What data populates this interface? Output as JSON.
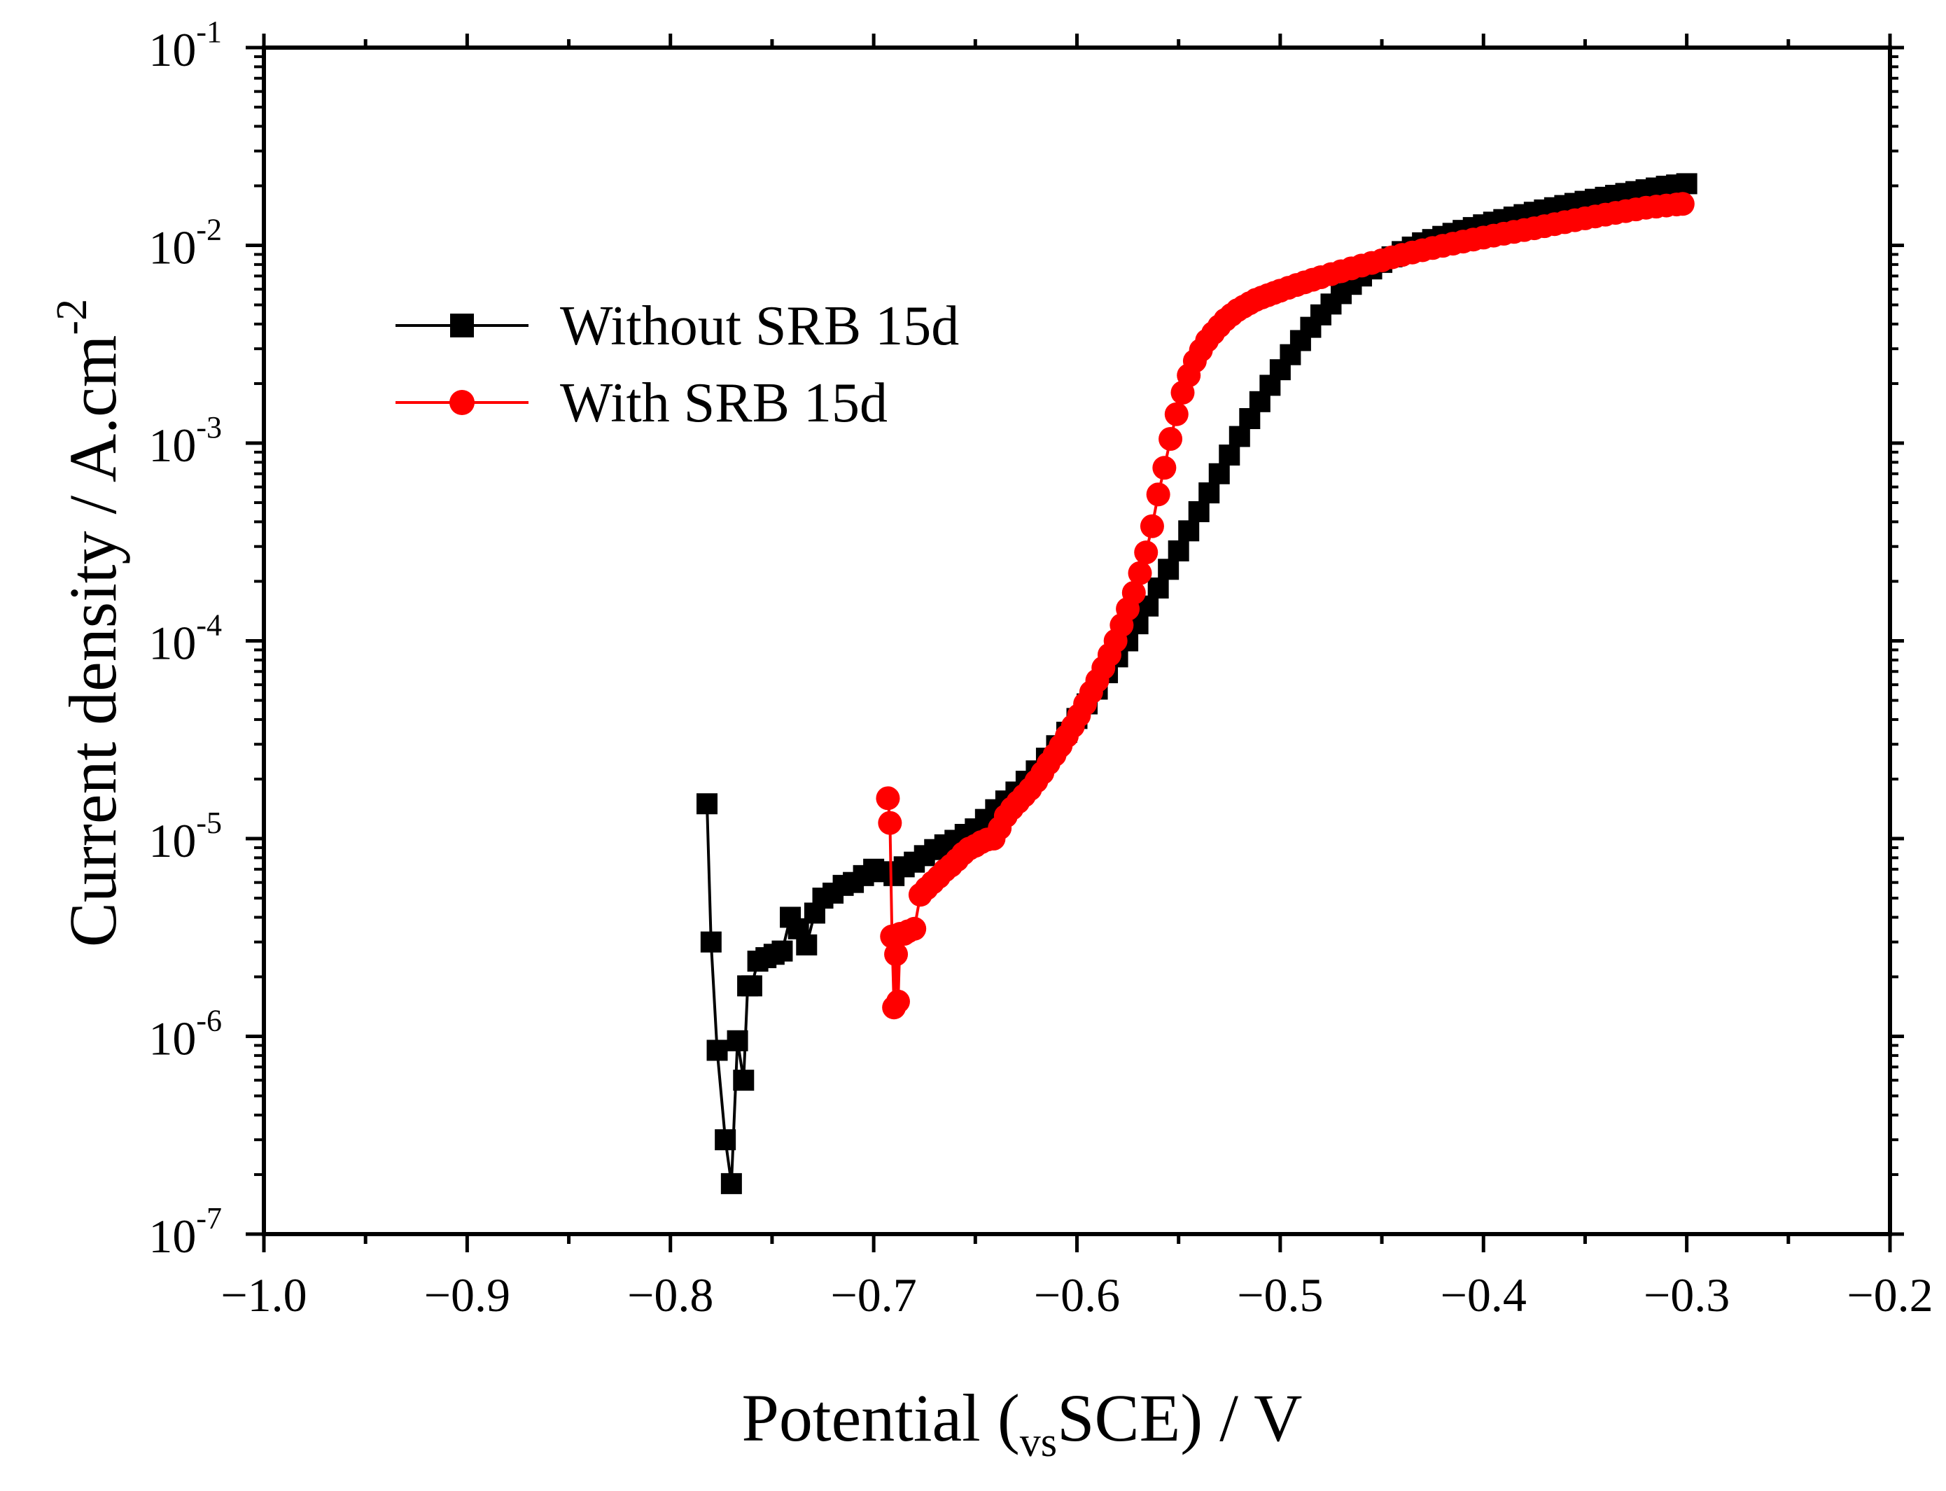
{
  "chart_data": {
    "type": "line",
    "xlabel": "Potential (",
    "xlabel_sub": "vs",
    "xlabel_tail": "SCE) / V",
    "ylabel": "Current density / A.cm",
    "ylabel_sup": "-2",
    "xlim": [
      -1.0,
      -0.2
    ],
    "ylim": [
      1e-07,
      0.1
    ],
    "yscale": "log",
    "x_ticks": [
      -1.0,
      -0.9,
      -0.8,
      -0.7,
      -0.6,
      -0.5,
      -0.4,
      -0.3,
      -0.2
    ],
    "x_tick_labels": [
      "−1.0",
      "−0.9",
      "−0.8",
      "−0.7",
      "−0.6",
      "−0.5",
      "−0.4",
      "−0.3",
      "−0.2"
    ],
    "y_ticks": [
      {
        "value": 1e-07,
        "base": "10",
        "exp": "-7"
      },
      {
        "value": 1e-06,
        "base": "10",
        "exp": "-6"
      },
      {
        "value": 1e-05,
        "base": "10",
        "exp": "-5"
      },
      {
        "value": 0.0001,
        "base": "10",
        "exp": "-4"
      },
      {
        "value": 0.001,
        "base": "10",
        "exp": "-3"
      },
      {
        "value": 0.01,
        "base": "10",
        "exp": "-2"
      },
      {
        "value": 0.1,
        "base": "10",
        "exp": "-1"
      }
    ],
    "legend_position": "upper-left",
    "series": [
      {
        "name": "Without SRB 15d",
        "color": "#000000",
        "marker": "square",
        "x": [
          -0.782,
          -0.78,
          -0.777,
          -0.773,
          -0.77,
          -0.767,
          -0.764,
          -0.762,
          -0.76,
          -0.757,
          -0.753,
          -0.749,
          -0.745,
          -0.741,
          -0.737,
          -0.733,
          -0.729,
          -0.725,
          -0.72,
          -0.715,
          -0.71,
          -0.705,
          -0.7,
          -0.695,
          -0.69,
          -0.685,
          -0.68,
          -0.675,
          -0.67,
          -0.665,
          -0.66,
          -0.655,
          -0.65,
          -0.645,
          -0.64,
          -0.635,
          -0.63,
          -0.625,
          -0.62,
          -0.615,
          -0.61,
          -0.605,
          -0.6,
          -0.595,
          -0.59,
          -0.585,
          -0.58,
          -0.575,
          -0.57,
          -0.565,
          -0.56,
          -0.555,
          -0.55,
          -0.545,
          -0.54,
          -0.535,
          -0.53,
          -0.525,
          -0.52,
          -0.515,
          -0.51,
          -0.505,
          -0.5,
          -0.495,
          -0.49,
          -0.485,
          -0.48,
          -0.475,
          -0.47,
          -0.465,
          -0.46,
          -0.455,
          -0.45,
          -0.445,
          -0.44,
          -0.435,
          -0.43,
          -0.425,
          -0.42,
          -0.415,
          -0.41,
          -0.405,
          -0.4,
          -0.395,
          -0.39,
          -0.385,
          -0.38,
          -0.375,
          -0.37,
          -0.365,
          -0.36,
          -0.355,
          -0.35,
          -0.345,
          -0.34,
          -0.335,
          -0.33,
          -0.325,
          -0.32,
          -0.315,
          -0.31,
          -0.305,
          -0.3
        ],
        "y": [
          1.5e-05,
          3e-06,
          8.5e-07,
          3e-07,
          1.8e-07,
          9.5e-07,
          6e-07,
          1.8e-06,
          1.8e-06,
          2.4e-06,
          2.5e-06,
          2.6e-06,
          2.7e-06,
          4e-06,
          3.5e-06,
          2.9e-06,
          4.2e-06,
          5e-06,
          5.3e-06,
          5.8e-06,
          6e-06,
          6.5e-06,
          7e-06,
          6.8e-06,
          6.5e-06,
          7.2e-06,
          7.6e-06,
          8.2e-06,
          8.8e-06,
          9.3e-06,
          9.8e-06,
          1.05e-05,
          1.12e-05,
          1.25e-05,
          1.4e-05,
          1.55e-05,
          1.72e-05,
          1.95e-05,
          2.2e-05,
          2.55e-05,
          2.95e-05,
          3.45e-05,
          4.05e-05,
          4.8e-05,
          5.7e-05,
          6.9e-05,
          8.3e-05,
          0.0001,
          0.000122,
          0.00015,
          0.000185,
          0.00023,
          0.000285,
          0.00036,
          0.00045,
          0.00056,
          0.0007,
          0.00087,
          0.00108,
          0.00133,
          0.00162,
          0.00196,
          0.00235,
          0.0028,
          0.0033,
          0.00385,
          0.00445,
          0.00505,
          0.0057,
          0.00635,
          0.007,
          0.0076,
          0.0082,
          0.00875,
          0.0093,
          0.0098,
          0.0103,
          0.0107,
          0.0111,
          0.0115,
          0.0119,
          0.0123,
          0.0127,
          0.0131,
          0.0135,
          0.0139,
          0.0143,
          0.0147,
          0.0151,
          0.0155,
          0.0159,
          0.0163,
          0.0167,
          0.0171,
          0.0175,
          0.0179,
          0.0183,
          0.0187,
          0.0191,
          0.0195,
          0.0199,
          0.0202,
          0.0205
        ]
      },
      {
        "name": "With SRB 15d",
        "color": "#ff0000",
        "marker": "circle",
        "x": [
          -0.693,
          -0.692,
          -0.691,
          -0.69,
          -0.689,
          -0.688,
          -0.687,
          -0.685,
          -0.683,
          -0.68,
          -0.677,
          -0.674,
          -0.671,
          -0.668,
          -0.665,
          -0.662,
          -0.659,
          -0.656,
          -0.653,
          -0.65,
          -0.647,
          -0.644,
          -0.641,
          -0.638,
          -0.635,
          -0.632,
          -0.629,
          -0.626,
          -0.623,
          -0.62,
          -0.617,
          -0.614,
          -0.611,
          -0.608,
          -0.605,
          -0.602,
          -0.599,
          -0.596,
          -0.593,
          -0.59,
          -0.587,
          -0.584,
          -0.581,
          -0.578,
          -0.575,
          -0.572,
          -0.569,
          -0.566,
          -0.563,
          -0.56,
          -0.557,
          -0.554,
          -0.551,
          -0.548,
          -0.545,
          -0.542,
          -0.539,
          -0.536,
          -0.533,
          -0.53,
          -0.527,
          -0.524,
          -0.521,
          -0.518,
          -0.515,
          -0.512,
          -0.509,
          -0.506,
          -0.503,
          -0.5,
          -0.496,
          -0.492,
          -0.488,
          -0.484,
          -0.48,
          -0.475,
          -0.47,
          -0.465,
          -0.46,
          -0.455,
          -0.45,
          -0.445,
          -0.44,
          -0.435,
          -0.43,
          -0.425,
          -0.42,
          -0.415,
          -0.41,
          -0.405,
          -0.4,
          -0.395,
          -0.39,
          -0.385,
          -0.38,
          -0.375,
          -0.37,
          -0.365,
          -0.36,
          -0.355,
          -0.35,
          -0.345,
          -0.34,
          -0.335,
          -0.33,
          -0.325,
          -0.32,
          -0.315,
          -0.31,
          -0.305,
          -0.302
        ],
        "y": [
          1.6e-05,
          1.2e-05,
          3.2e-06,
          1.4e-06,
          2.6e-06,
          1.5e-06,
          3.3e-06,
          3.3e-06,
          3.4e-06,
          3.5e-06,
          5.2e-06,
          5.6e-06,
          6e-06,
          6.4e-06,
          6.9e-06,
          7.3e-06,
          7.8e-06,
          8.4e-06,
          8.9e-06,
          9.2e-06,
          9.6e-06,
          9.9e-06,
          1e-05,
          1.13e-05,
          1.3e-05,
          1.42e-05,
          1.53e-05,
          1.65e-05,
          1.78e-05,
          1.95e-05,
          2.15e-05,
          2.4e-05,
          2.65e-05,
          2.95e-05,
          3.3e-05,
          3.7e-05,
          4.2e-05,
          4.8e-05,
          5.5e-05,
          6.3e-05,
          7.3e-05,
          8.5e-05,
          0.0001,
          0.00012,
          0.000145,
          0.000175,
          0.00022,
          0.00028,
          0.00038,
          0.00055,
          0.00075,
          0.00105,
          0.0014,
          0.0018,
          0.0022,
          0.0026,
          0.00295,
          0.0033,
          0.0036,
          0.0039,
          0.0042,
          0.00445,
          0.0047,
          0.0049,
          0.0051,
          0.0053,
          0.00545,
          0.0056,
          0.00575,
          0.0059,
          0.0061,
          0.0063,
          0.0065,
          0.0067,
          0.0069,
          0.00715,
          0.0074,
          0.00765,
          0.0079,
          0.00815,
          0.0084,
          0.0087,
          0.00895,
          0.0092,
          0.00945,
          0.0097,
          0.00995,
          0.0102,
          0.01045,
          0.0107,
          0.01095,
          0.0112,
          0.01145,
          0.0117,
          0.01195,
          0.0122,
          0.0125,
          0.0128,
          0.0131,
          0.0134,
          0.0137,
          0.014,
          0.0143,
          0.0146,
          0.0149,
          0.0152,
          0.0155,
          0.0157,
          0.0159,
          0.0161,
          0.0162
        ]
      }
    ]
  }
}
